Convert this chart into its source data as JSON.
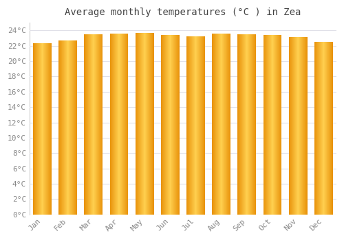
{
  "title": "Average monthly temperatures (°C ) in Zea",
  "months": [
    "Jan",
    "Feb",
    "Mar",
    "Apr",
    "May",
    "Jun",
    "Jul",
    "Aug",
    "Sep",
    "Oct",
    "Nov",
    "Dec"
  ],
  "values": [
    22.3,
    22.7,
    23.5,
    23.6,
    23.7,
    23.4,
    23.2,
    23.6,
    23.5,
    23.4,
    23.1,
    22.5
  ],
  "bar_color_center": "#FFD050",
  "bar_color_edge": "#E8920A",
  "background_color": "#FFFFFF",
  "grid_color": "#E0E0E8",
  "tick_color": "#888888",
  "title_color": "#444444",
  "ylim": [
    0,
    25
  ],
  "ytick_step": 2,
  "title_fontsize": 10,
  "tick_fontsize": 8
}
